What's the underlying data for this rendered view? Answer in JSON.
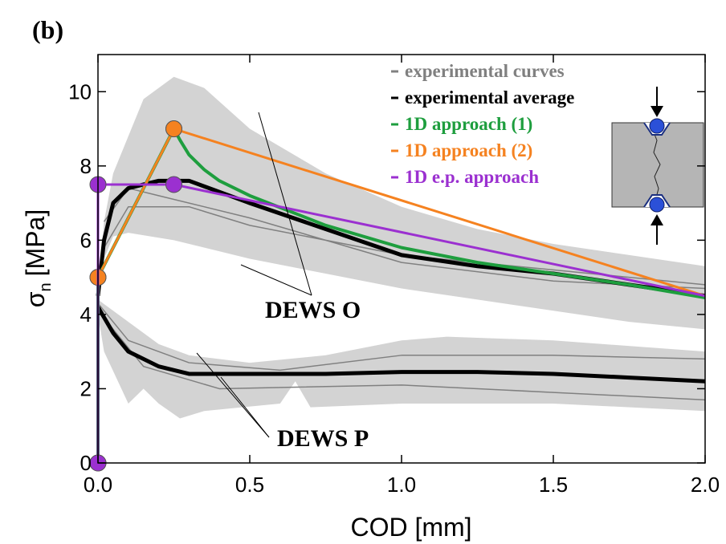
{
  "chart_data": {
    "type": "line",
    "title": "(b)",
    "xlabel": "COD [mm]",
    "ylabel": {
      "symbol": "σ",
      "subscript": "n",
      "unit": "[MPa]"
    },
    "xlim": [
      0,
      2
    ],
    "ylim": [
      0,
      11
    ],
    "xticks": [
      {
        "value": 0,
        "label": "0.0"
      },
      0.5,
      {
        "value": 1,
        "label": "1.0"
      },
      1.5,
      {
        "value": 2,
        "label": "2.0"
      }
    ],
    "yticks": [
      0,
      2,
      4,
      6,
      8,
      10
    ],
    "legend": "top-right",
    "annotations": [
      "DEWS O",
      "DEWS P"
    ],
    "bands": [
      {
        "color": "#d3d3d3",
        "upper": {
          "x": [
            0,
            0.02,
            0.05,
            0.1,
            0.15,
            0.25,
            0.35,
            0.5,
            0.75,
            1.0,
            1.25,
            1.5,
            1.75,
            2.0
          ],
          "values": [
            4.5,
            6.5,
            7.8,
            8.8,
            9.8,
            10.4,
            10.1,
            9.0,
            7.8,
            6.9,
            6.3,
            5.9,
            5.6,
            5.3
          ]
        },
        "lower": {
          "x": [
            0,
            0.02,
            0.05,
            0.1,
            0.25,
            0.5,
            0.75,
            1.0,
            1.25,
            1.5,
            1.75,
            2.0
          ],
          "values": [
            4.5,
            5.5,
            6.1,
            6.2,
            6.0,
            5.5,
            5.1,
            4.7,
            4.4,
            4.1,
            3.8,
            3.6
          ]
        }
      },
      {
        "color": "#d3d3d3",
        "upper": {
          "x": [
            0,
            0.1,
            0.2,
            0.3,
            0.5,
            0.75,
            1.0,
            1.15,
            1.5,
            2.0
          ],
          "values": [
            4.4,
            3.8,
            3.2,
            2.9,
            2.7,
            2.9,
            3.3,
            3.4,
            3.3,
            3.0
          ]
        },
        "lower": {
          "x": [
            0,
            0.02,
            0.1,
            0.15,
            0.2,
            0.27,
            0.35,
            0.6,
            0.65,
            0.7,
            1.0,
            1.5,
            2.0
          ],
          "values": [
            4.0,
            3.0,
            1.6,
            2.0,
            1.6,
            1.2,
            1.4,
            1.6,
            2.2,
            1.5,
            1.6,
            1.6,
            1.4
          ]
        }
      }
    ],
    "series": [
      {
        "name": "experimental curves",
        "color": "#808080",
        "width": 1.5,
        "x": [
          0.02,
          0.1,
          0.2,
          0.5,
          1.0,
          1.5,
          2.0,
          null,
          0.02,
          0.1,
          0.3,
          0.5,
          1.0,
          1.5,
          2.0,
          null,
          0,
          0.1,
          0.3,
          0.6,
          1.0,
          1.5,
          2.0,
          null,
          0,
          0.15,
          0.4,
          1.0,
          1.5,
          2.0
        ],
        "values": [
          6.5,
          7.4,
          7.2,
          6.6,
          5.4,
          4.9,
          4.7,
          null,
          5.8,
          6.9,
          6.9,
          6.4,
          5.6,
          5.2,
          4.8,
          null,
          4.3,
          3.3,
          2.7,
          2.5,
          2.9,
          2.9,
          2.8,
          null,
          4.1,
          2.6,
          2.0,
          2.1,
          1.9,
          1.7
        ]
      },
      {
        "name": "experimental average",
        "color": "#000000",
        "width": 5,
        "x": [
          0,
          0.02,
          0.05,
          0.1,
          0.2,
          0.3,
          0.4,
          0.5,
          0.75,
          1.0,
          1.25,
          1.5,
          1.75,
          2.0,
          null,
          0,
          0.05,
          0.1,
          0.2,
          0.3,
          0.5,
          0.75,
          1.0,
          1.25,
          1.5,
          1.75,
          2.0
        ],
        "values": [
          4.5,
          6.0,
          7.0,
          7.4,
          7.6,
          7.6,
          7.3,
          7.0,
          6.3,
          5.6,
          5.3,
          5.1,
          4.8,
          4.5,
          null,
          4.2,
          3.5,
          3.0,
          2.6,
          2.4,
          2.4,
          2.4,
          2.45,
          2.45,
          2.4,
          2.3,
          2.2
        ]
      },
      {
        "name": "1D approach (1)",
        "color": "#1e9e3e",
        "width": 4,
        "x": [
          0,
          0,
          0.25,
          0.27,
          0.3,
          0.35,
          0.4,
          0.5,
          0.75,
          1.0,
          1.25,
          1.5,
          1.75,
          2.0
        ],
        "values": [
          0,
          5,
          9,
          8.7,
          8.3,
          7.9,
          7.6,
          7.2,
          6.4,
          5.8,
          5.4,
          5.1,
          4.8,
          4.45
        ],
        "points": {
          "x": [
            0,
            0,
            0.25
          ],
          "values": [
            0,
            5,
            9
          ]
        }
      },
      {
        "name": "1D approach (2)",
        "color": "#f58220",
        "width": 3,
        "x": [
          0,
          0.25,
          2.0
        ],
        "values": [
          5,
          9,
          4.5
        ],
        "points": {
          "x": [
            0,
            0.25
          ],
          "values": [
            5,
            9
          ]
        }
      },
      {
        "name": "1D e.p. approach",
        "color": "#9b30d0",
        "width": 3,
        "x": [
          0,
          0,
          0.25,
          2.0
        ],
        "values": [
          0,
          7.5,
          7.5,
          4.5
        ],
        "points": {
          "x": [
            0,
            0,
            0.25
          ],
          "values": [
            0,
            7.5,
            7.5
          ]
        }
      }
    ]
  }
}
